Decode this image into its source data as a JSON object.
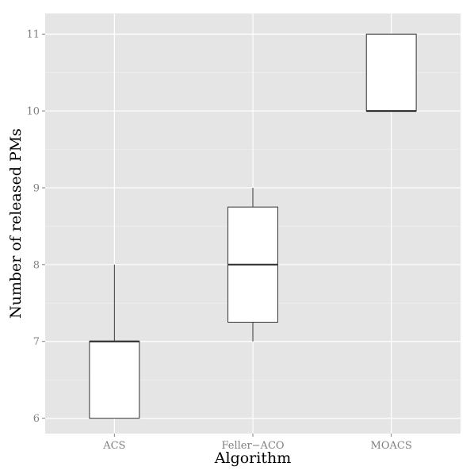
{
  "chart_data": {
    "type": "boxplot",
    "title": "",
    "xlabel": "Algorithm",
    "ylabel": "Number of released PMs",
    "ylim": [
      5.8,
      11.27
    ],
    "yticks": [
      6,
      7,
      8,
      9,
      10,
      11
    ],
    "categories": [
      "ACS",
      "Feller−ACO",
      "MOACS"
    ],
    "boxes": [
      {
        "category": "ACS",
        "whisker_low": 6,
        "q1": 6,
        "median": 7,
        "q3": 7,
        "whisker_high": 8
      },
      {
        "category": "Feller−ACO",
        "whisker_low": 7,
        "q1": 7.25,
        "median": 8,
        "q3": 8.75,
        "whisker_high": 9
      },
      {
        "category": "MOACS",
        "whisker_low": 10,
        "q1": 10,
        "median": 10,
        "q3": 11,
        "whisker_high": 11
      }
    ],
    "grid": true,
    "colors": {
      "panel": "#e5e5e5",
      "grid": "#ffffff",
      "box_fill": "#ffffff",
      "box_stroke": "#333333"
    }
  }
}
